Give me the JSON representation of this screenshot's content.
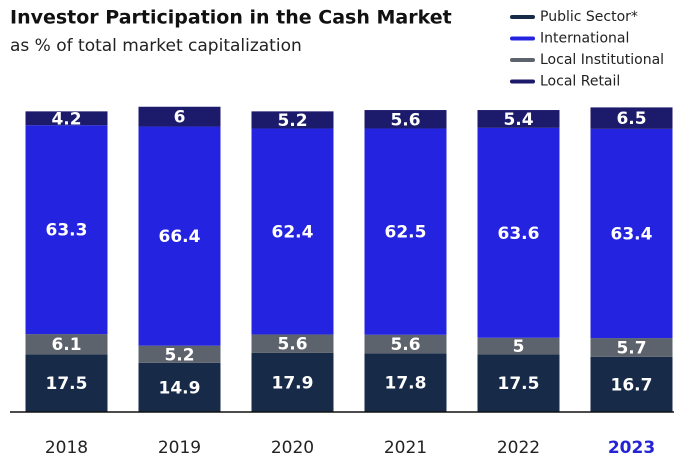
{
  "chart_data": {
    "type": "stacked_bar",
    "title": "Investor Participation in the Cash Market",
    "subtitle": "as % of total market capitalization",
    "categories": [
      "2018",
      "2019",
      "2020",
      "2021",
      "2022",
      "2023"
    ],
    "highlight": "2023",
    "highlight_color": "#2424d6",
    "series": [
      {
        "name": "Public Sector*",
        "color": "#172a48",
        "values": [
          17.5,
          14.9,
          17.9,
          17.8,
          17.5,
          16.7
        ]
      },
      {
        "name": "Local Institutional",
        "color": "#5d636c",
        "values": [
          6.1,
          5.2,
          5.6,
          5.6,
          5.0,
          5.7
        ]
      },
      {
        "name": "International",
        "color": "#2424e0",
        "values": [
          63.3,
          66.4,
          62.4,
          62.5,
          63.6,
          63.4
        ]
      },
      {
        "name": "Local Retail",
        "color": "#1c1a6a",
        "values": [
          4.2,
          6.0,
          5.2,
          5.6,
          5.4,
          6.5
        ]
      }
    ],
    "legend_order": [
      0,
      2,
      1,
      3
    ],
    "ylim": [
      0,
      100
    ]
  }
}
